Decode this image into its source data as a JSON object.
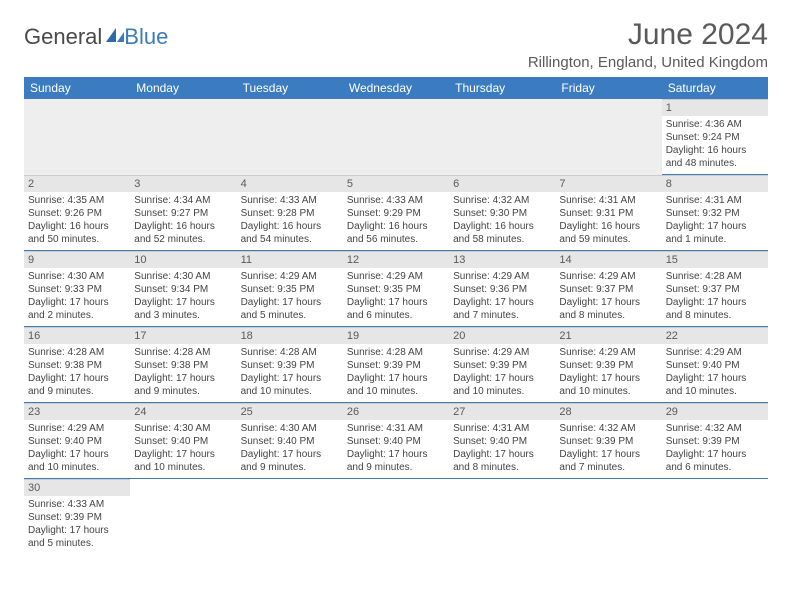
{
  "logo": {
    "text1": "General",
    "text2": "Blue"
  },
  "title": "June 2024",
  "location": "Rillington, England, United Kingdom",
  "colors": {
    "header_bg": "#3b7bbf",
    "header_fg": "#ffffff",
    "daynum_bg": "#e6e6e6",
    "blank_bg": "#eeeeee",
    "border": "#3b7bbf",
    "text": "#444444"
  },
  "fonts": {
    "title_pt": 30,
    "location_pt": 15,
    "th_pt": 12,
    "cell_pt": 10
  },
  "dayHeaders": [
    "Sunday",
    "Monday",
    "Tuesday",
    "Wednesday",
    "Thursday",
    "Friday",
    "Saturday"
  ],
  "weeks": [
    [
      null,
      null,
      null,
      null,
      null,
      null,
      {
        "n": "1",
        "sr": "Sunrise: 4:36 AM",
        "ss": "Sunset: 9:24 PM",
        "d1": "Daylight: 16 hours",
        "d2": "and 48 minutes."
      }
    ],
    [
      {
        "n": "2",
        "sr": "Sunrise: 4:35 AM",
        "ss": "Sunset: 9:26 PM",
        "d1": "Daylight: 16 hours",
        "d2": "and 50 minutes."
      },
      {
        "n": "3",
        "sr": "Sunrise: 4:34 AM",
        "ss": "Sunset: 9:27 PM",
        "d1": "Daylight: 16 hours",
        "d2": "and 52 minutes."
      },
      {
        "n": "4",
        "sr": "Sunrise: 4:33 AM",
        "ss": "Sunset: 9:28 PM",
        "d1": "Daylight: 16 hours",
        "d2": "and 54 minutes."
      },
      {
        "n": "5",
        "sr": "Sunrise: 4:33 AM",
        "ss": "Sunset: 9:29 PM",
        "d1": "Daylight: 16 hours",
        "d2": "and 56 minutes."
      },
      {
        "n": "6",
        "sr": "Sunrise: 4:32 AM",
        "ss": "Sunset: 9:30 PM",
        "d1": "Daylight: 16 hours",
        "d2": "and 58 minutes."
      },
      {
        "n": "7",
        "sr": "Sunrise: 4:31 AM",
        "ss": "Sunset: 9:31 PM",
        "d1": "Daylight: 16 hours",
        "d2": "and 59 minutes."
      },
      {
        "n": "8",
        "sr": "Sunrise: 4:31 AM",
        "ss": "Sunset: 9:32 PM",
        "d1": "Daylight: 17 hours",
        "d2": "and 1 minute."
      }
    ],
    [
      {
        "n": "9",
        "sr": "Sunrise: 4:30 AM",
        "ss": "Sunset: 9:33 PM",
        "d1": "Daylight: 17 hours",
        "d2": "and 2 minutes."
      },
      {
        "n": "10",
        "sr": "Sunrise: 4:30 AM",
        "ss": "Sunset: 9:34 PM",
        "d1": "Daylight: 17 hours",
        "d2": "and 3 minutes."
      },
      {
        "n": "11",
        "sr": "Sunrise: 4:29 AM",
        "ss": "Sunset: 9:35 PM",
        "d1": "Daylight: 17 hours",
        "d2": "and 5 minutes."
      },
      {
        "n": "12",
        "sr": "Sunrise: 4:29 AM",
        "ss": "Sunset: 9:35 PM",
        "d1": "Daylight: 17 hours",
        "d2": "and 6 minutes."
      },
      {
        "n": "13",
        "sr": "Sunrise: 4:29 AM",
        "ss": "Sunset: 9:36 PM",
        "d1": "Daylight: 17 hours",
        "d2": "and 7 minutes."
      },
      {
        "n": "14",
        "sr": "Sunrise: 4:29 AM",
        "ss": "Sunset: 9:37 PM",
        "d1": "Daylight: 17 hours",
        "d2": "and 8 minutes."
      },
      {
        "n": "15",
        "sr": "Sunrise: 4:28 AM",
        "ss": "Sunset: 9:37 PM",
        "d1": "Daylight: 17 hours",
        "d2": "and 8 minutes."
      }
    ],
    [
      {
        "n": "16",
        "sr": "Sunrise: 4:28 AM",
        "ss": "Sunset: 9:38 PM",
        "d1": "Daylight: 17 hours",
        "d2": "and 9 minutes."
      },
      {
        "n": "17",
        "sr": "Sunrise: 4:28 AM",
        "ss": "Sunset: 9:38 PM",
        "d1": "Daylight: 17 hours",
        "d2": "and 9 minutes."
      },
      {
        "n": "18",
        "sr": "Sunrise: 4:28 AM",
        "ss": "Sunset: 9:39 PM",
        "d1": "Daylight: 17 hours",
        "d2": "and 10 minutes."
      },
      {
        "n": "19",
        "sr": "Sunrise: 4:28 AM",
        "ss": "Sunset: 9:39 PM",
        "d1": "Daylight: 17 hours",
        "d2": "and 10 minutes."
      },
      {
        "n": "20",
        "sr": "Sunrise: 4:29 AM",
        "ss": "Sunset: 9:39 PM",
        "d1": "Daylight: 17 hours",
        "d2": "and 10 minutes."
      },
      {
        "n": "21",
        "sr": "Sunrise: 4:29 AM",
        "ss": "Sunset: 9:39 PM",
        "d1": "Daylight: 17 hours",
        "d2": "and 10 minutes."
      },
      {
        "n": "22",
        "sr": "Sunrise: 4:29 AM",
        "ss": "Sunset: 9:40 PM",
        "d1": "Daylight: 17 hours",
        "d2": "and 10 minutes."
      }
    ],
    [
      {
        "n": "23",
        "sr": "Sunrise: 4:29 AM",
        "ss": "Sunset: 9:40 PM",
        "d1": "Daylight: 17 hours",
        "d2": "and 10 minutes."
      },
      {
        "n": "24",
        "sr": "Sunrise: 4:30 AM",
        "ss": "Sunset: 9:40 PM",
        "d1": "Daylight: 17 hours",
        "d2": "and 10 minutes."
      },
      {
        "n": "25",
        "sr": "Sunrise: 4:30 AM",
        "ss": "Sunset: 9:40 PM",
        "d1": "Daylight: 17 hours",
        "d2": "and 9 minutes."
      },
      {
        "n": "26",
        "sr": "Sunrise: 4:31 AM",
        "ss": "Sunset: 9:40 PM",
        "d1": "Daylight: 17 hours",
        "d2": "and 9 minutes."
      },
      {
        "n": "27",
        "sr": "Sunrise: 4:31 AM",
        "ss": "Sunset: 9:40 PM",
        "d1": "Daylight: 17 hours",
        "d2": "and 8 minutes."
      },
      {
        "n": "28",
        "sr": "Sunrise: 4:32 AM",
        "ss": "Sunset: 9:39 PM",
        "d1": "Daylight: 17 hours",
        "d2": "and 7 minutes."
      },
      {
        "n": "29",
        "sr": "Sunrise: 4:32 AM",
        "ss": "Sunset: 9:39 PM",
        "d1": "Daylight: 17 hours",
        "d2": "and 6 minutes."
      }
    ],
    [
      {
        "n": "30",
        "sr": "Sunrise: 4:33 AM",
        "ss": "Sunset: 9:39 PM",
        "d1": "Daylight: 17 hours",
        "d2": "and 5 minutes."
      },
      null,
      null,
      null,
      null,
      null,
      null
    ]
  ]
}
